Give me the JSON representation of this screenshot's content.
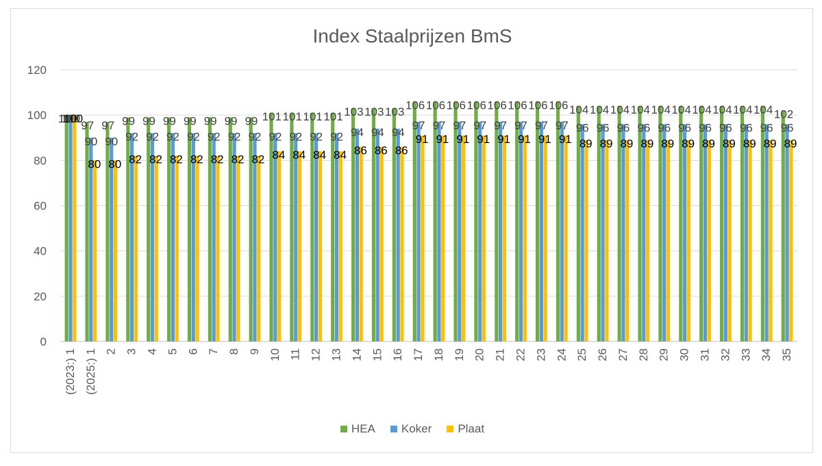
{
  "chart_data": {
    "type": "bar",
    "title": "Index Staalprijzen BmS",
    "xlabel": "",
    "ylabel": "",
    "ylim": [
      0,
      120
    ],
    "yticks": [
      0,
      20,
      40,
      60,
      80,
      100,
      120
    ],
    "grid": true,
    "legend_position": "bottom",
    "categories": [
      "(2023:) 1",
      "(2025:) 1",
      "2",
      "3",
      "4",
      "5",
      "6",
      "7",
      "8",
      "9",
      "10",
      "11",
      "12",
      "13",
      "14",
      "15",
      "16",
      "17",
      "18",
      "19",
      "20",
      "21",
      "22",
      "23",
      "24",
      "25",
      "26",
      "27",
      "28",
      "29",
      "30",
      "31",
      "32",
      "33",
      "34",
      "35"
    ],
    "series": [
      {
        "name": "HEA",
        "color": "#70ad47",
        "values": [
          100,
          97,
          97,
          99,
          99,
          99,
          99,
          99,
          99,
          99,
          101,
          101,
          101,
          101,
          103,
          103,
          103,
          106,
          106,
          106,
          106,
          106,
          106,
          106,
          106,
          104,
          104,
          104,
          104,
          104,
          104,
          104,
          104,
          104,
          104,
          102
        ]
      },
      {
        "name": "Koker",
        "color": "#5b9bd5",
        "values": [
          100,
          90,
          90,
          92,
          92,
          92,
          92,
          92,
          92,
          92,
          92,
          92,
          92,
          92,
          94,
          94,
          94,
          97,
          97,
          97,
          97,
          97,
          97,
          97,
          97,
          96,
          96,
          96,
          96,
          96,
          96,
          96,
          96,
          96,
          96,
          96
        ]
      },
      {
        "name": "Plaat",
        "color": "#ffc000",
        "values": [
          100,
          80,
          80,
          82,
          82,
          82,
          82,
          82,
          82,
          82,
          84,
          84,
          84,
          84,
          86,
          86,
          86,
          91,
          91,
          91,
          91,
          91,
          91,
          91,
          91,
          89,
          89,
          89,
          89,
          89,
          89,
          89,
          89,
          89,
          89,
          89
        ]
      }
    ]
  }
}
